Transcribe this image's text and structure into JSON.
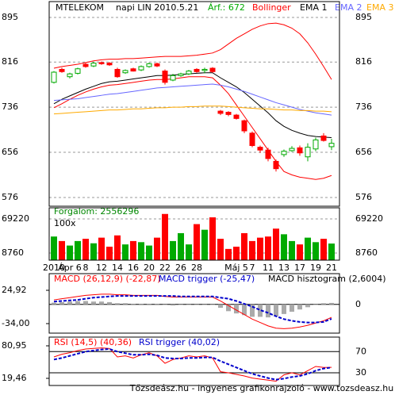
{
  "chart_data": [
    {
      "type": "candlestick",
      "title": "MTELEKOM",
      "subtitle": "napi LIN 2010.5.21",
      "annotation": "Árf.: 672",
      "annotation_color": "#00aa00",
      "categories": [
        "2010",
        null,
        "Ápr 6",
        null,
        "8",
        null,
        "12",
        null,
        "14",
        null,
        "16",
        null,
        "20",
        null,
        "22",
        null,
        "26",
        null,
        "28",
        null,
        null,
        null,
        null,
        "Máj 5",
        null,
        "7",
        null,
        "11",
        null,
        "13",
        null,
        "17",
        null,
        "19",
        null,
        "21"
      ],
      "open": [
        780,
        803,
        790,
        796,
        812,
        809,
        815,
        814,
        803,
        797,
        804,
        802,
        808,
        813,
        800,
        784,
        792,
        795,
        803,
        801,
        805,
        729,
        727,
        722,
        712,
        690,
        665,
        660,
        640,
        652,
        659,
        664,
        648,
        662,
        685,
        666
      ],
      "high": [
        800,
        806,
        797,
        806,
        815,
        816,
        817,
        816,
        806,
        803,
        806,
        810,
        815,
        815,
        803,
        795,
        797,
        802,
        805,
        806,
        807,
        731,
        729,
        724,
        714,
        693,
        668,
        664,
        643,
        661,
        667,
        668,
        672,
        682,
        690,
        680
      ],
      "low": [
        778,
        797,
        787,
        794,
        806,
        807,
        811,
        809,
        788,
        795,
        799,
        800,
        806,
        807,
        776,
        782,
        790,
        793,
        797,
        796,
        797,
        722,
        720,
        714,
        690,
        665,
        655,
        640,
        622,
        648,
        657,
        650,
        640,
        658,
        675,
        660
      ],
      "close": [
        798,
        799,
        795,
        804,
        808,
        814,
        813,
        811,
        790,
        801,
        800,
        808,
        813,
        809,
        780,
        792,
        795,
        800,
        799,
        803,
        799,
        725,
        723,
        716,
        694,
        668,
        660,
        645,
        627,
        658,
        663,
        655,
        665,
        678,
        677,
        672
      ],
      "up_color": "#00aa00",
      "down_color": "#ff0000",
      "series": [
        {
          "name": "Bollinger",
          "color": "#ff0000",
          "upper": [
            805,
            808,
            810,
            812,
            815,
            818,
            820,
            821,
            821,
            822,
            822,
            823,
            824,
            825,
            826,
            826,
            826,
            827,
            828,
            830,
            832,
            838,
            848,
            858,
            866,
            874,
            880,
            884,
            885,
            882,
            876,
            866,
            850,
            830,
            808,
            785
          ],
          "lower": [
            735,
            742,
            750,
            757,
            763,
            768,
            772,
            775,
            776,
            778,
            780,
            782,
            784,
            785,
            785,
            786,
            788,
            790,
            790,
            790,
            788,
            775,
            760,
            740,
            720,
            700,
            680,
            660,
            640,
            622,
            616,
            612,
            610,
            608,
            610,
            615
          ]
        },
        {
          "name": "EMA 1",
          "color": "#000000",
          "values": [
            742,
            750,
            756,
            762,
            768,
            773,
            778,
            781,
            782,
            784,
            786,
            788,
            790,
            792,
            792,
            793,
            794,
            795,
            796,
            797,
            797,
            788,
            780,
            772,
            762,
            750,
            738,
            726,
            712,
            702,
            695,
            690,
            686,
            684,
            683,
            682
          ]
        },
        {
          "name": "EMA 2",
          "color": "#6666ff",
          "values": [
            748,
            749,
            750,
            751,
            753,
            755,
            757,
            759,
            760,
            762,
            764,
            766,
            768,
            770,
            771,
            772,
            773,
            774,
            775,
            776,
            777,
            775,
            772,
            768,
            764,
            759,
            754,
            749,
            744,
            740,
            736,
            732,
            729,
            726,
            724,
            722
          ]
        },
        {
          "name": "EMA 3",
          "color": "#ffaa00",
          "values": [
            724,
            725,
            726,
            727,
            728,
            729,
            730,
            731,
            731,
            732,
            733,
            733,
            734,
            735,
            735,
            736,
            736,
            737,
            737,
            738,
            738,
            738,
            737,
            736,
            735,
            734,
            733,
            733,
            732,
            731,
            731,
            730,
            730,
            729,
            729,
            728
          ]
        }
      ],
      "ylim": [
        560.5,
        923.1
      ],
      "yticks": [
        895,
        816,
        736,
        656,
        576
      ],
      "grid": true
    },
    {
      "type": "bar",
      "title": "Forgalom: 2556296",
      "title_color": "#008800",
      "annotation": "100x",
      "values": [
        38000,
        30000,
        22000,
        30000,
        34000,
        26000,
        36000,
        20000,
        40000,
        24000,
        30000,
        28000,
        22000,
        36000,
        78000,
        30000,
        44000,
        24000,
        60000,
        50000,
        72000,
        34000,
        16000,
        20000,
        44000,
        30000,
        36000,
        38000,
        52000,
        42000,
        30000,
        24000,
        36000,
        28000,
        34000,
        25563
      ],
      "ylim": [
        -3894,
        88905
      ],
      "yticks": [
        69220,
        8760
      ],
      "grid": true
    },
    {
      "type": "line",
      "series": [
        {
          "name": "MACD (26,12,9) (-22,87)",
          "color": "#ff0000",
          "values": [
            8,
            10,
            12,
            14,
            16,
            17,
            18,
            18,
            17,
            17,
            16,
            16,
            16,
            16,
            14,
            13,
            13,
            13,
            13,
            13,
            13,
            6,
            -2,
            -10,
            -18,
            -26,
            -32,
            -38,
            -42,
            -43,
            -42,
            -40,
            -37,
            -33,
            -29,
            -22.87
          ]
        },
        {
          "name": "MACD trigger (-25,47)",
          "color": "#0000cc",
          "dashed": true,
          "values": [
            5,
            6,
            7,
            8,
            10,
            12,
            13,
            14,
            15,
            15,
            15,
            15,
            15,
            15,
            15,
            15,
            14,
            14,
            14,
            14,
            14,
            12,
            10,
            6,
            1,
            -4,
            -10,
            -15,
            -21,
            -26,
            -29,
            -31,
            -32,
            -32,
            -31,
            -25.47
          ]
        },
        {
          "name": "MACD hisztogram (2,6004)",
          "color": "#aaaaaa",
          "kind": "bar",
          "values": [
            3,
            4,
            5,
            6,
            6,
            5,
            5,
            4,
            2,
            2,
            1,
            1,
            1,
            1,
            -1,
            -2,
            -1,
            -1,
            -1,
            -1,
            -1,
            -6,
            -12,
            -16,
            -19,
            -22,
            -22,
            -23,
            -21,
            -17,
            -13,
            -9,
            -5,
            -1,
            2,
            2.6004
          ]
        }
      ],
      "ylim": [
        -50.84,
        54.38
      ],
      "yticks": [
        {
          "value": 24.92,
          "label": "24,92"
        },
        {
          "value": -34,
          "label": "-34,00"
        }
      ],
      "y2ticks": [
        0
      ]
    },
    {
      "type": "line",
      "series": [
        {
          "name": "RSI (14,5) (40,36)",
          "color": "#ff0000",
          "values": [
            60,
            65,
            68,
            72,
            75,
            76,
            77,
            76,
            60,
            62,
            58,
            64,
            68,
            62,
            48,
            55,
            58,
            62,
            60,
            62,
            58,
            32,
            30,
            27,
            24,
            20,
            18,
            16,
            14,
            26,
            30,
            26,
            34,
            42,
            40,
            40.36
          ]
        },
        {
          "name": "RSI trigger (40,02)",
          "color": "#0000cc",
          "dashed": true,
          "values": [
            55,
            58,
            62,
            66,
            70,
            72,
            74,
            75,
            70,
            67,
            64,
            64,
            65,
            63,
            58,
            57,
            57,
            58,
            58,
            59,
            59,
            52,
            46,
            40,
            34,
            28,
            24,
            20,
            17,
            19,
            22,
            24,
            28,
            34,
            38,
            40.02
          ]
        }
      ],
      "ylim": [
        5.96,
        97.45
      ],
      "yticks": [
        {
          "value": 80.95,
          "label": "80,95"
        },
        {
          "value": 19.46,
          "label": "19,46"
        }
      ],
      "y2ticks": [
        70,
        30
      ]
    }
  ],
  "footer": "Tőzsdeász.hu - ingyenes grafikonrajzoló - www.tozsdeasz.hu"
}
